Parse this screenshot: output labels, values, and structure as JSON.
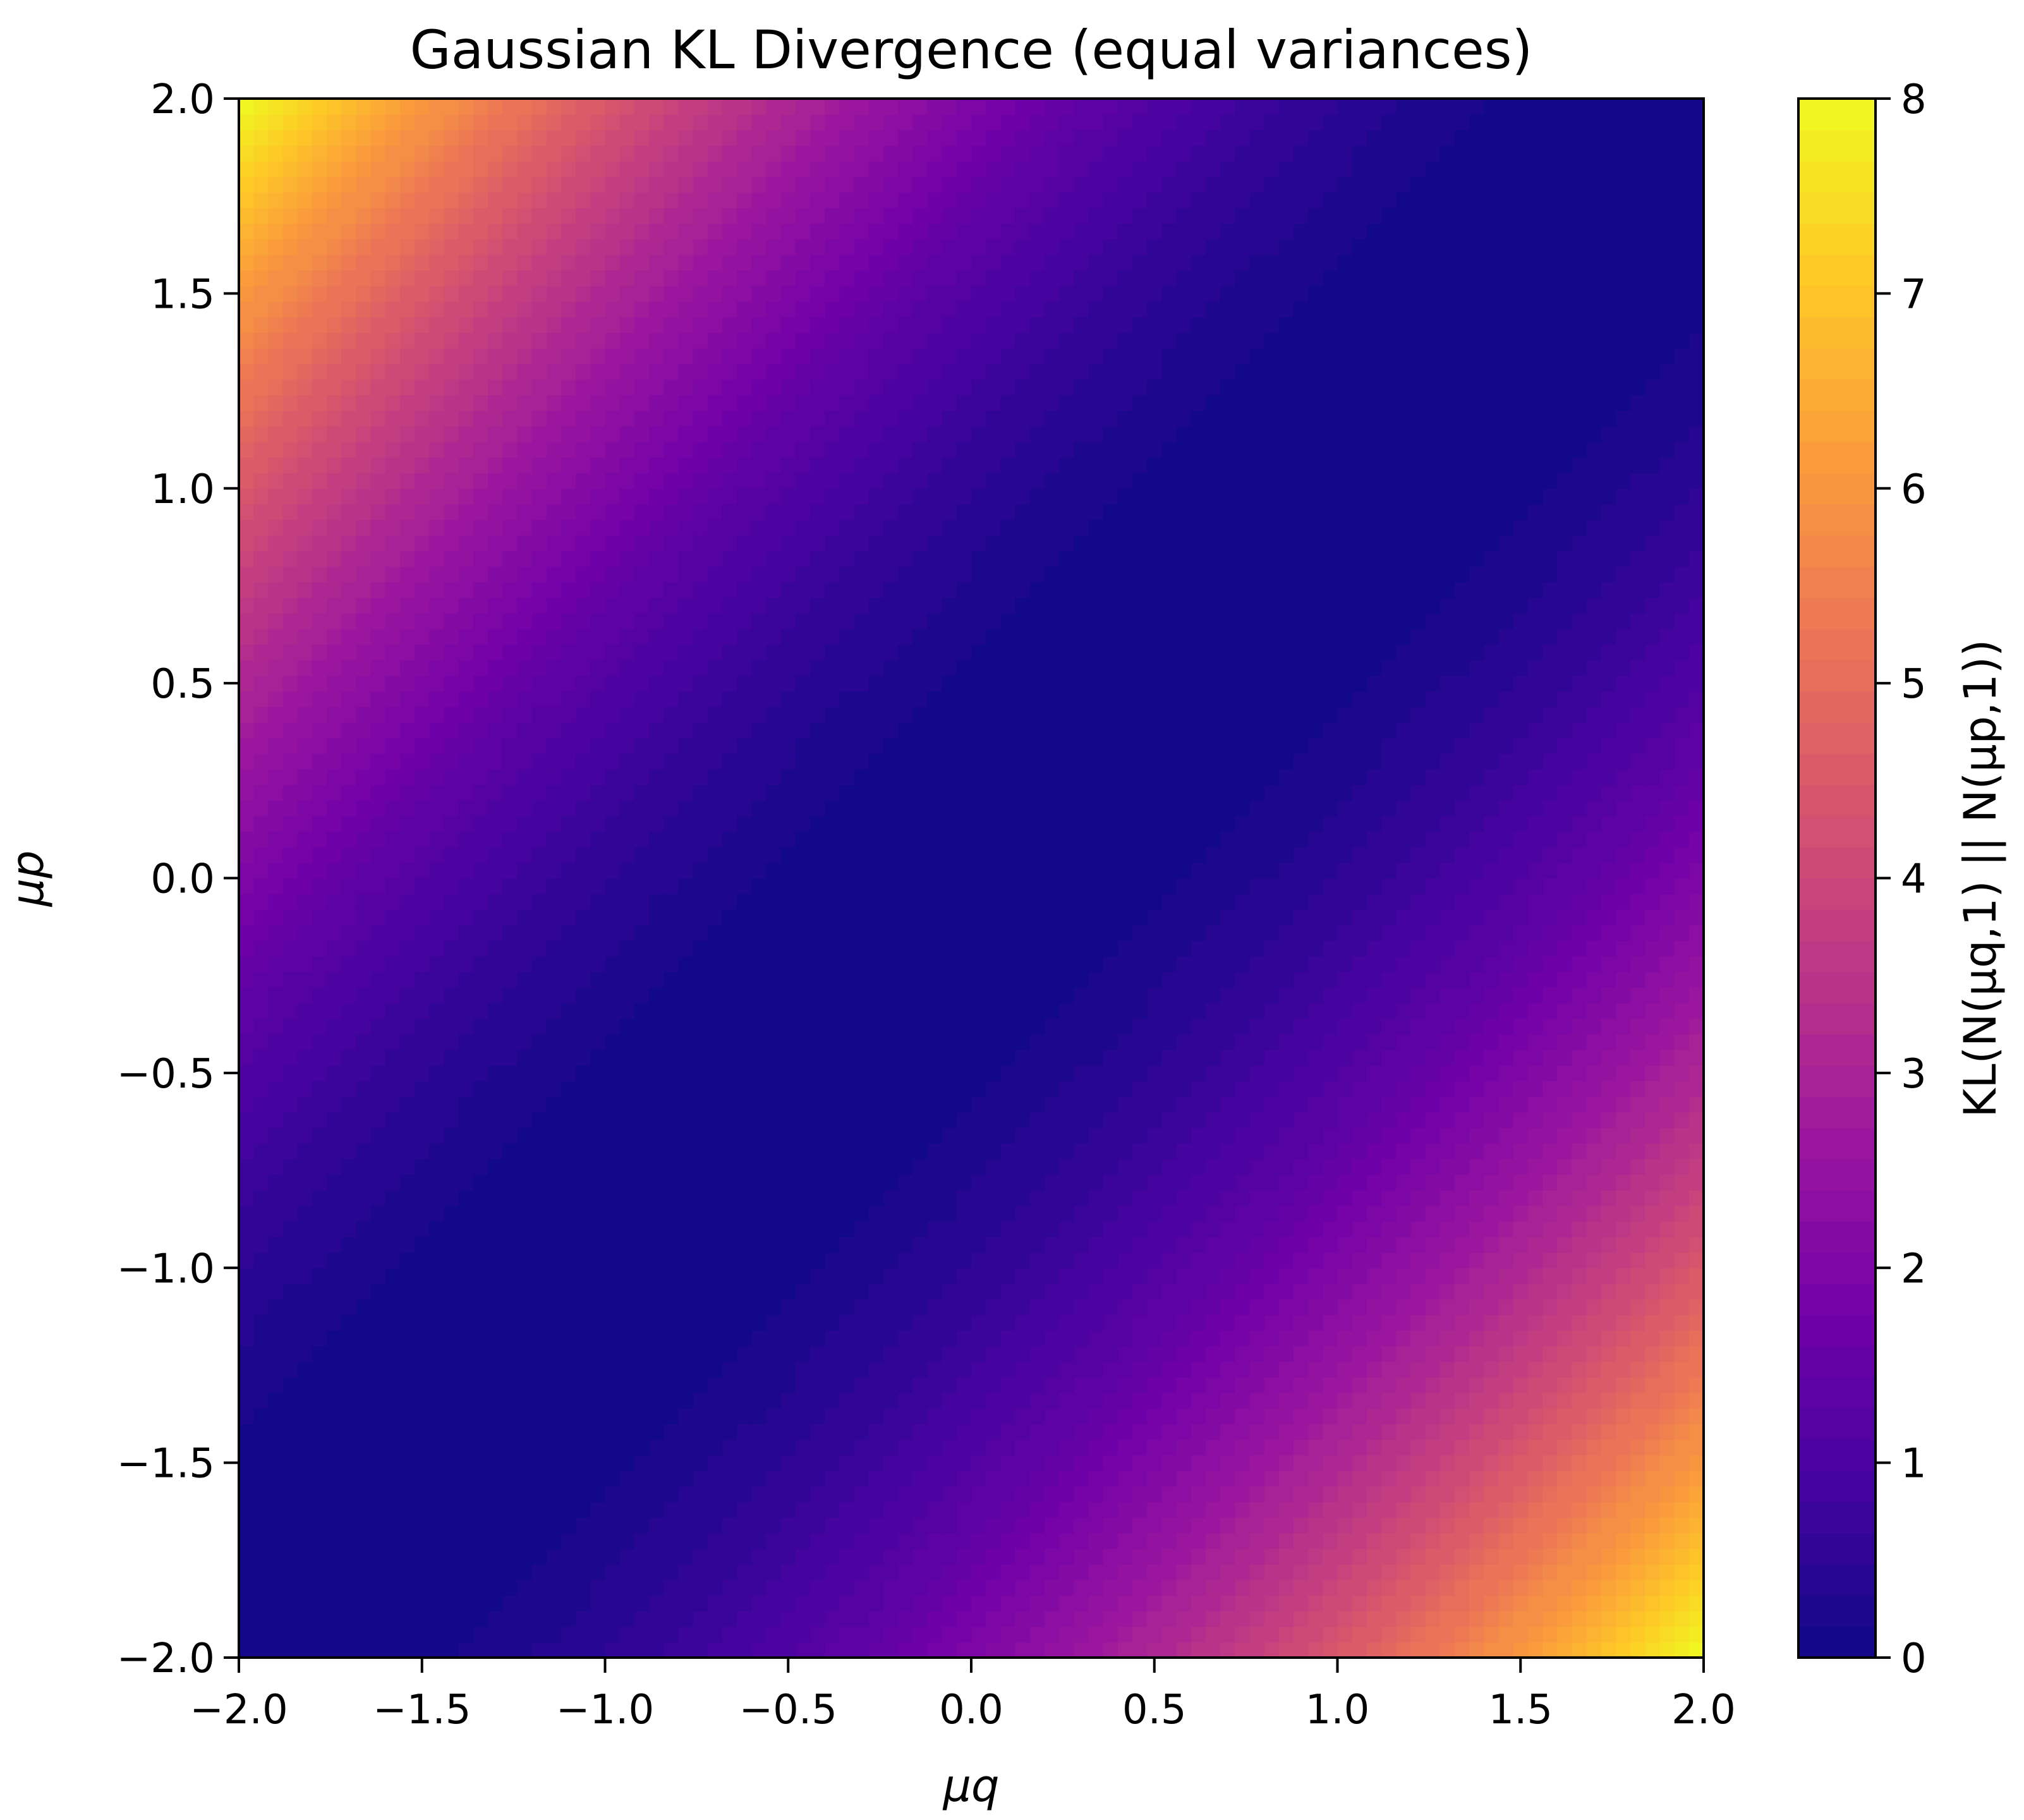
{
  "chart_data": {
    "type": "heatmap",
    "title": "Gaussian KL Divergence (equal variances)",
    "xlabel": "μq",
    "ylabel": "μp",
    "colorbar_label": "KL(N(μq,1) || N(μp,1))",
    "xlim": [
      -2.0,
      2.0
    ],
    "ylim": [
      -2.0,
      2.0
    ],
    "color_range": [
      0,
      8
    ],
    "colormap": "plasma",
    "colormap_stops": [
      "#0d0887",
      "#46039f",
      "#7201a8",
      "#9c179e",
      "#bd3786",
      "#d8576b",
      "#ed7953",
      "#fb9f3a",
      "#fdca26",
      "#f0f921"
    ],
    "formula": "0.5*(μq-μp)^2",
    "levels": 50,
    "x_ticks": [
      "−2.0",
      "−1.5",
      "−1.0",
      "−0.5",
      "0.0",
      "0.5",
      "1.0",
      "1.5",
      "2.0"
    ],
    "y_ticks": [
      "−2.0",
      "−1.5",
      "−1.0",
      "−0.5",
      "0.0",
      "0.5",
      "1.0",
      "1.5",
      "2.0"
    ],
    "colorbar_ticks": [
      "0",
      "1",
      "2",
      "3",
      "4",
      "5",
      "6",
      "7",
      "8"
    ],
    "grid": false
  }
}
